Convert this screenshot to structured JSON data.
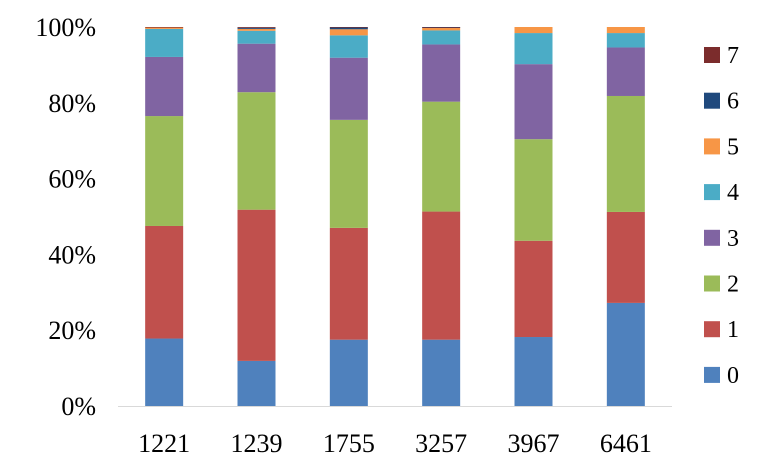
{
  "chart_data": {
    "type": "bar",
    "stacked": true,
    "percent": true,
    "title": "",
    "xlabel": "",
    "ylabel": "",
    "ylim": [
      0,
      100
    ],
    "y_ticks": [
      "0%",
      "20%",
      "40%",
      "60%",
      "80%",
      "100%"
    ],
    "categories": [
      "1221",
      "1239",
      "1755",
      "3257",
      "3967",
      "6461"
    ],
    "legend_position": "right",
    "grid": false,
    "series": [
      {
        "name": "0",
        "color": "#4F81BD",
        "values": [
          17.8,
          11.9,
          17.5,
          17.5,
          18.2,
          27.2
        ]
      },
      {
        "name": "1",
        "color": "#C0504D",
        "values": [
          29.7,
          39.9,
          29.5,
          33.8,
          25.4,
          24.0
        ]
      },
      {
        "name": "2",
        "color": "#9BBB59",
        "values": [
          29.0,
          31.0,
          28.5,
          29.0,
          26.8,
          30.6
        ]
      },
      {
        "name": "3",
        "color": "#8064A2",
        "values": [
          15.6,
          12.8,
          16.4,
          15.1,
          19.8,
          12.8
        ]
      },
      {
        "name": "4",
        "color": "#4BACC6",
        "values": [
          7.4,
          3.4,
          5.9,
          3.7,
          8.2,
          3.8
        ]
      },
      {
        "name": "5",
        "color": "#F79646",
        "values": [
          0.4,
          0.5,
          1.6,
          0.7,
          1.6,
          1.6
        ]
      },
      {
        "name": "6",
        "color": "#1F497D",
        "values": [
          0.0,
          0.3,
          0.5,
          0.1,
          0.0,
          0.0
        ]
      },
      {
        "name": "7",
        "color": "#7B2C2C",
        "values": [
          0.1,
          0.2,
          0.1,
          0.1,
          0.0,
          0.0
        ]
      }
    ]
  }
}
